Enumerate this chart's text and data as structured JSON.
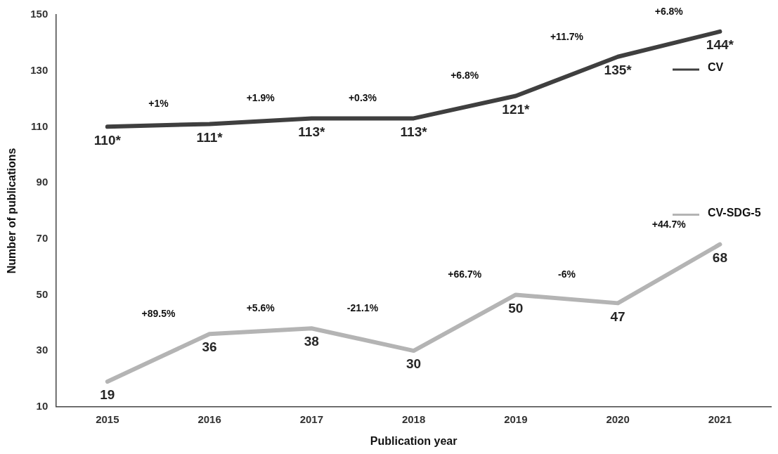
{
  "chart_data": {
    "type": "line",
    "xlabel": "Publication year",
    "ylabel": "Number of publications",
    "categories": [
      "2015",
      "2016",
      "2017",
      "2018",
      "2019",
      "2020",
      "2021"
    ],
    "series": [
      {
        "name": "CV",
        "color": "#3f3f3f",
        "values": [
          110,
          111,
          113,
          113,
          121,
          135,
          144
        ],
        "value_labels": [
          "110*",
          "111*",
          "113*",
          "113*",
          "121*",
          "135*",
          "144*"
        ]
      },
      {
        "name": "CV-SDG-5",
        "color": "#b4b4b4",
        "values": [
          19,
          36,
          38,
          30,
          50,
          47,
          68
        ],
        "value_labels": [
          "19",
          "36",
          "38",
          "30",
          "50",
          "47",
          "68"
        ]
      }
    ],
    "annotations": [
      "+1%",
      "+1.9%",
      "+0.3%",
      "+6.8%",
      "+11.7%",
      "+6.8%",
      "+89.5%",
      "+5.6%",
      "-21.1%",
      "+66.7%",
      "-6%",
      "+44.7%"
    ],
    "ylim": [
      10,
      150
    ],
    "yticks": [
      10,
      30,
      50,
      70,
      90,
      110,
      130,
      150
    ],
    "grid": false,
    "legend": "right",
    "line_style": "solid"
  }
}
